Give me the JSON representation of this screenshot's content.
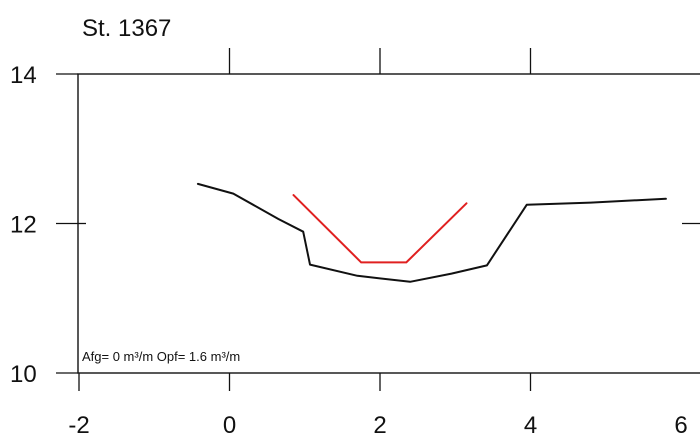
{
  "chart_data": {
    "type": "line",
    "title": "St. 1367",
    "xlabel": "",
    "ylabel": "",
    "xlim": [
      -2,
      6
    ],
    "ylim": [
      10,
      14
    ],
    "x_ticks": [
      -2,
      0,
      2,
      4,
      6
    ],
    "y_ticks": [
      10,
      12,
      14
    ],
    "x_tick_labels": [
      "-2",
      "0",
      "2",
      "4",
      "6"
    ],
    "y_tick_labels": [
      "10",
      "12",
      "14"
    ],
    "grid": false,
    "annotation": "Afg= 0 m³/m  Opf= 1.6 m³/m",
    "series": [
      {
        "color": "#111111",
        "points": [
          {
            "x": -0.42,
            "y": 12.53
          },
          {
            "x": 0.05,
            "y": 12.4
          },
          {
            "x": 0.65,
            "y": 12.06
          },
          {
            "x": 0.98,
            "y": 11.89
          },
          {
            "x": 1.07,
            "y": 11.45
          },
          {
            "x": 1.7,
            "y": 11.3
          },
          {
            "x": 2.4,
            "y": 11.22
          },
          {
            "x": 2.95,
            "y": 11.33
          },
          {
            "x": 3.42,
            "y": 11.44
          },
          {
            "x": 3.95,
            "y": 12.25
          },
          {
            "x": 4.8,
            "y": 12.28
          },
          {
            "x": 5.8,
            "y": 12.33
          }
        ]
      },
      {
        "color": "#e02020",
        "points": [
          {
            "x": 0.85,
            "y": 12.38
          },
          {
            "x": 1.75,
            "y": 11.48
          },
          {
            "x": 2.35,
            "y": 11.48
          },
          {
            "x": 3.15,
            "y": 12.27
          }
        ]
      }
    ]
  }
}
